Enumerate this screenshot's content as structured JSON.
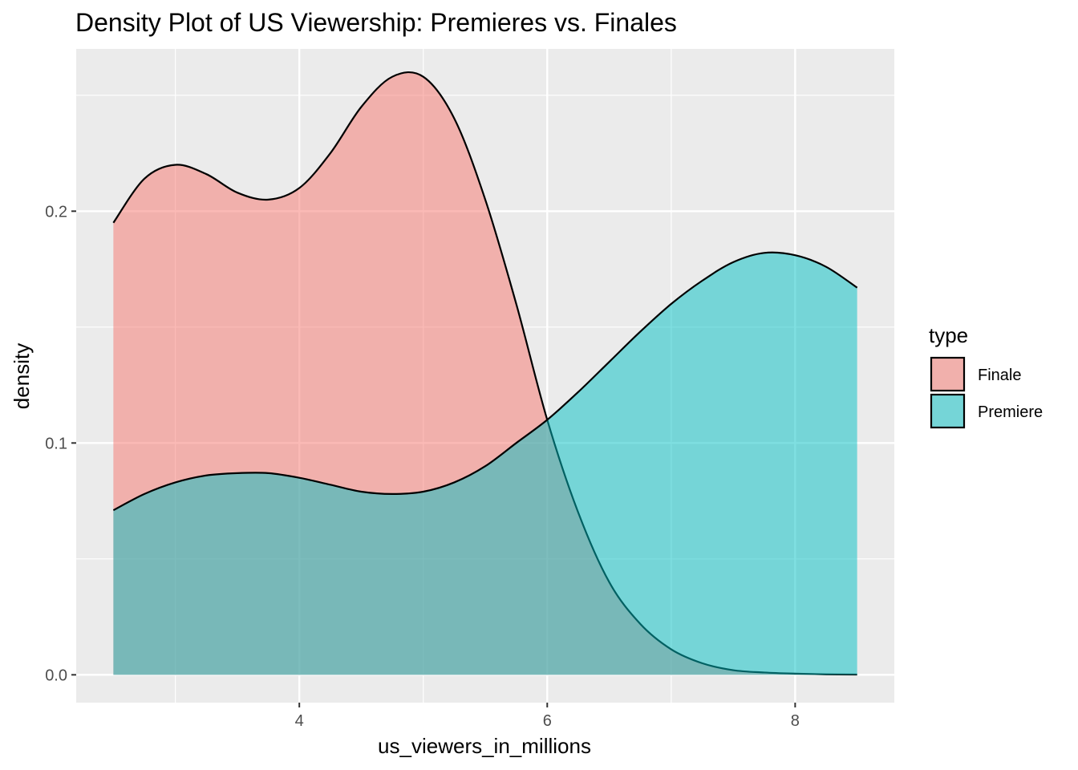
{
  "chart_data": {
    "type": "area",
    "title": "Density Plot of US Viewership: Premieres vs. Finales",
    "xlabel": "us_viewers_in_millions",
    "ylabel": "density",
    "xlim": [
      2.2,
      8.8
    ],
    "ylim": [
      -0.012,
      0.27
    ],
    "x_ticks": [
      4,
      6,
      8
    ],
    "x_tick_labels": [
      "4",
      "6",
      "8"
    ],
    "y_ticks": [
      0.0,
      0.1,
      0.2
    ],
    "y_tick_labels": [
      "0.0",
      "0.1",
      "0.2"
    ],
    "grid": true,
    "legend": {
      "title": "type",
      "position": "right"
    },
    "x": [
      2.5,
      2.75,
      3.0,
      3.25,
      3.5,
      3.75,
      4.0,
      4.25,
      4.5,
      4.75,
      5.0,
      5.25,
      5.5,
      5.75,
      6.0,
      6.25,
      6.5,
      6.75,
      7.0,
      7.25,
      7.5,
      7.75,
      8.0,
      8.25,
      8.5
    ],
    "series": [
      {
        "name": "Finale",
        "color": "#F8766D",
        "values": [
          0.195,
          0.214,
          0.22,
          0.216,
          0.208,
          0.205,
          0.21,
          0.225,
          0.245,
          0.258,
          0.258,
          0.24,
          0.205,
          0.16,
          0.11,
          0.07,
          0.04,
          0.022,
          0.011,
          0.005,
          0.002,
          0.001,
          0.0005,
          0.0002,
          0.0001
        ]
      },
      {
        "name": "Premiere",
        "color": "#00BFC4",
        "values": [
          0.071,
          0.078,
          0.083,
          0.086,
          0.087,
          0.087,
          0.085,
          0.082,
          0.079,
          0.078,
          0.079,
          0.083,
          0.09,
          0.1,
          0.11,
          0.122,
          0.135,
          0.148,
          0.16,
          0.17,
          0.178,
          0.182,
          0.181,
          0.176,
          0.167
        ]
      }
    ]
  }
}
